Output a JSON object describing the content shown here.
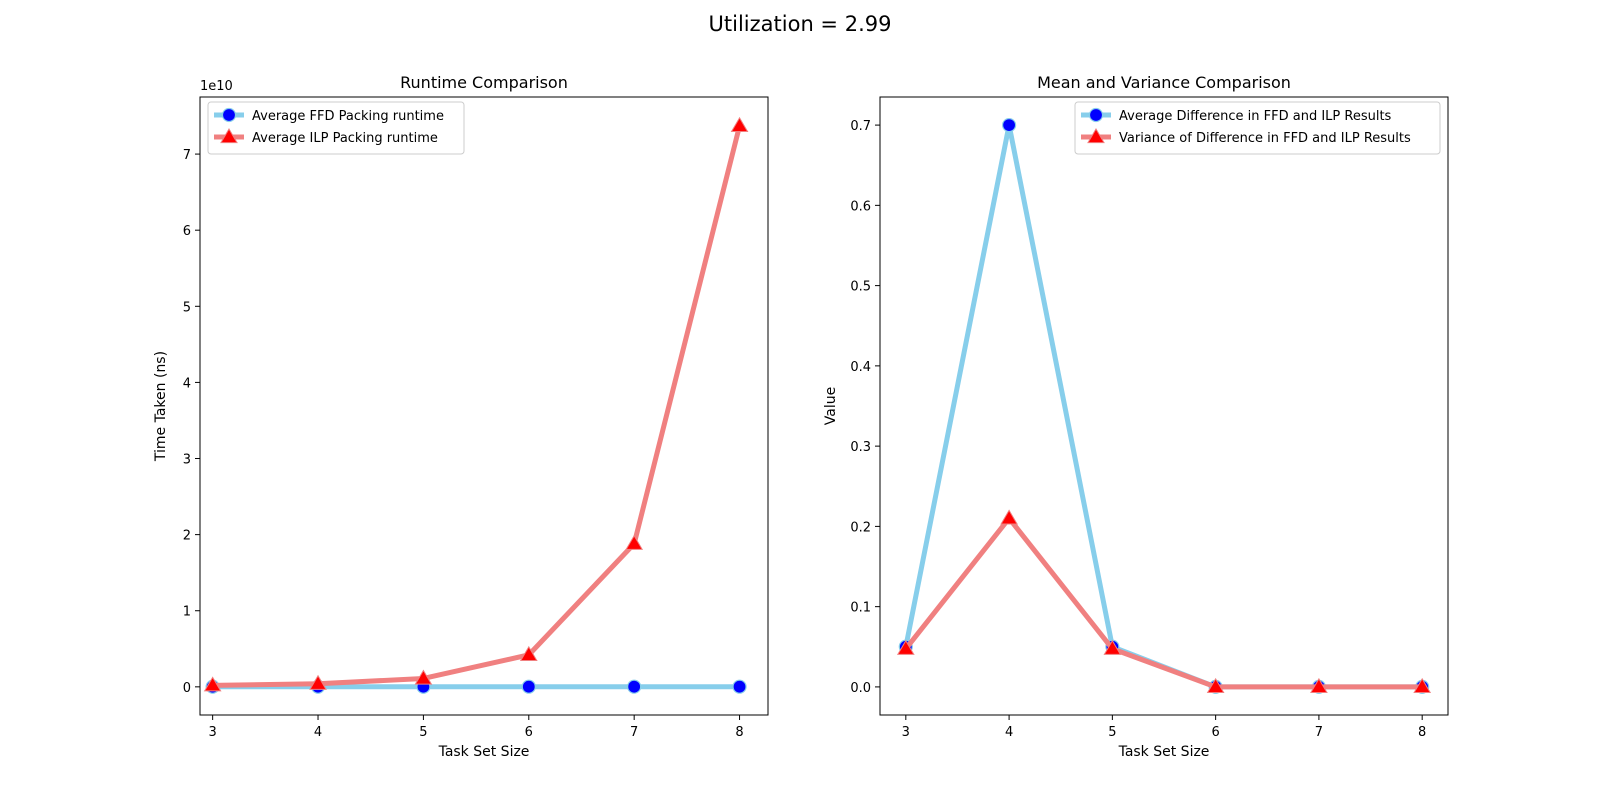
{
  "figure": {
    "suptitle": "Utilization = 2.99"
  },
  "colors": {
    "ffd_line": "#87ceeb",
    "ffd_marker": "#0000ff",
    "ilp_line": "#f08080",
    "ilp_marker": "#ff0000"
  },
  "chart_data": [
    {
      "type": "line",
      "title": "Runtime Comparison",
      "xlabel": "Task Set Size",
      "ylabel": "Time Taken (ns)",
      "offset_text": "1e10",
      "x": [
        3,
        4,
        5,
        6,
        7,
        8
      ],
      "xticks": [
        "3",
        "4",
        "5",
        "6",
        "7",
        "8"
      ],
      "yticks": [
        "0",
        "1",
        "2",
        "3",
        "4",
        "5",
        "6",
        "7"
      ],
      "xlim": [
        2.88,
        8.27
      ],
      "ylim": [
        -0.37,
        7.75
      ],
      "legend_position": "upper left",
      "series": [
        {
          "name": "Average FFD Packing runtime",
          "marker": "circle",
          "line_color": "#87ceeb",
          "marker_color": "#0000ff",
          "values": [
            0.001,
            0.001,
            0.001,
            0.002,
            0.002,
            0.002
          ]
        },
        {
          "name": "Average ILP Packing runtime",
          "marker": "triangle",
          "line_color": "#f08080",
          "marker_color": "#ff0000",
          "values": [
            0.02,
            0.04,
            0.11,
            0.42,
            1.88,
            7.37
          ]
        }
      ]
    },
    {
      "type": "line",
      "title": "Mean and Variance Comparison",
      "xlabel": "Task Set Size",
      "ylabel": "Value",
      "x": [
        3,
        4,
        5,
        6,
        7,
        8
      ],
      "xticks": [
        "3",
        "4",
        "5",
        "6",
        "7",
        "8"
      ],
      "yticks": [
        "0.0",
        "0.1",
        "0.2",
        "0.3",
        "0.4",
        "0.5",
        "0.6",
        "0.7"
      ],
      "xlim": [
        2.75,
        8.25
      ],
      "ylim": [
        -0.035,
        0.735
      ],
      "legend_position": "upper right",
      "series": [
        {
          "name": "Average Difference in FFD and ILP Results",
          "marker": "circle",
          "line_color": "#87ceeb",
          "marker_color": "#0000ff",
          "values": [
            0.05,
            0.7,
            0.05,
            0.0,
            0.0,
            0.0
          ]
        },
        {
          "name": "Variance of Difference in FFD and ILP Results",
          "marker": "triangle",
          "line_color": "#f08080",
          "marker_color": "#ff0000",
          "values": [
            0.0475,
            0.21,
            0.0475,
            0.0,
            0.0,
            0.0
          ]
        }
      ]
    }
  ]
}
